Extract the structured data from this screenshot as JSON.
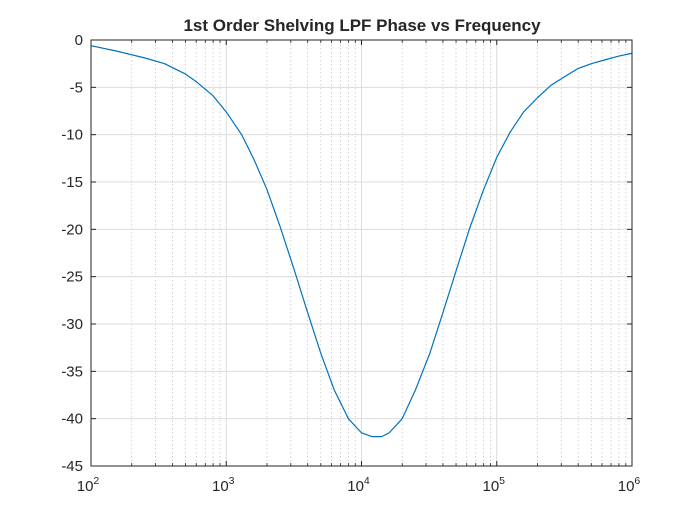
{
  "chart_data": {
    "type": "line",
    "title": "1st Order Shelving LPF Phase vs Frequency",
    "xlabel": "",
    "ylabel": "",
    "x_scale": "log",
    "xlim": [
      100,
      1000000
    ],
    "ylim": [
      -45,
      0
    ],
    "grid": true,
    "minor_grid_x": true,
    "x_ticks": [
      {
        "base": "10",
        "exp": "2"
      },
      {
        "base": "10",
        "exp": "3"
      },
      {
        "base": "10",
        "exp": "4"
      },
      {
        "base": "10",
        "exp": "5"
      },
      {
        "base": "10",
        "exp": "6"
      }
    ],
    "y_ticks": [
      "0",
      "-5",
      "-10",
      "-15",
      "-20",
      "-25",
      "-30",
      "-35",
      "-40",
      "-45"
    ],
    "series": [
      {
        "color": "#0072bd",
        "x": [
          100,
          158,
          251,
          350,
          500,
          600,
          800,
          1000,
          1300,
          1600,
          2000,
          2500,
          3200,
          4000,
          5000,
          6300,
          8000,
          10000,
          12000,
          14100,
          16000,
          20000,
          25000,
          32000,
          40000,
          50000,
          63000,
          80000,
          100000,
          126000,
          158000,
          200000,
          251000,
          316000,
          400000,
          500000,
          630000,
          800000,
          1000000
        ],
        "y": [
          -0.6,
          -1.2,
          -1.9,
          -2.5,
          -3.6,
          -4.4,
          -5.9,
          -7.6,
          -10.0,
          -12.6,
          -15.8,
          -19.7,
          -24.4,
          -28.8,
          -33.1,
          -37.0,
          -40.0,
          -41.5,
          -41.9,
          -41.9,
          -41.5,
          -40.0,
          -37.0,
          -33.1,
          -28.8,
          -24.4,
          -19.9,
          -15.8,
          -12.4,
          -9.7,
          -7.6,
          -6.1,
          -4.8,
          -3.9,
          -3.0,
          -2.5,
          -2.1,
          -1.7,
          -1.4
        ]
      }
    ]
  }
}
